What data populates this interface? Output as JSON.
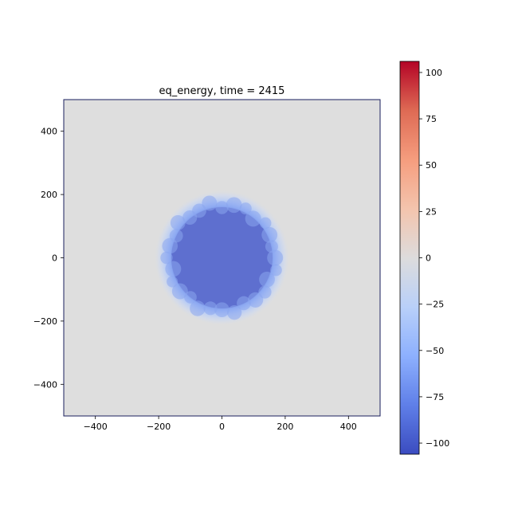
{
  "chart_data": {
    "type": "heatmap",
    "title": "eq_energy, time = 2415",
    "xlabel": "",
    "ylabel": "",
    "xlim": [
      -500,
      500
    ],
    "ylim": [
      -500,
      500
    ],
    "x_ticks": [
      -400,
      -200,
      0,
      200,
      400
    ],
    "y_ticks": [
      -400,
      -200,
      0,
      200,
      400
    ],
    "x_tick_labels": [
      "−400",
      "−200",
      "0",
      "200",
      "400"
    ],
    "y_tick_labels": [
      "−400",
      "−200",
      "0",
      "200",
      "400"
    ],
    "grid": false,
    "colormap": "coolwarm",
    "colorbar": {
      "range": [
        -106,
        106
      ],
      "ticks": [
        -100,
        -75,
        -50,
        -25,
        0,
        25,
        50,
        75,
        100
      ],
      "tick_labels": [
        "−100",
        "−75",
        "−50",
        "−25",
        "0",
        "25",
        "50",
        "75",
        "100"
      ],
      "placement": "right"
    },
    "field": {
      "background_value": 0,
      "disk_center": [
        0,
        0
      ],
      "disk_core_radius": 160,
      "disk_core_value": -100,
      "halo_outer_radius": 215,
      "halo_value": -30
    },
    "colors": {
      "low": "#3b4cc0",
      "mid": "#dddddd",
      "high": "#b40426"
    }
  }
}
